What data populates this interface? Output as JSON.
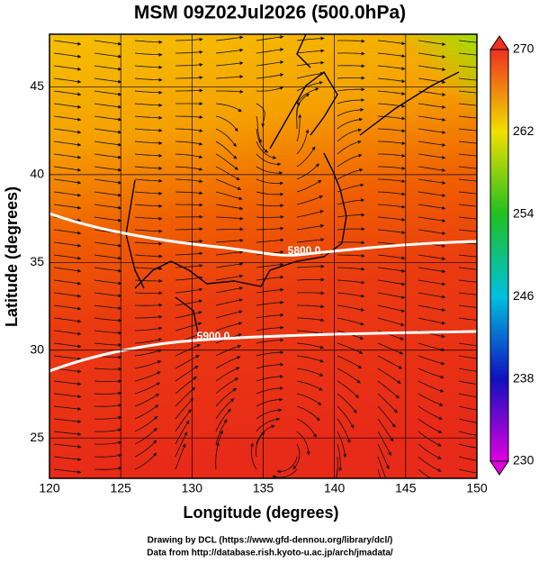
{
  "map": {
    "title": "MSM 09Z02Jul2026 (500.0hPa)",
    "xlabel": "Longitude (degrees)",
    "ylabel": "Latitude  (degrees)",
    "xlim": [
      120,
      150
    ],
    "ylim": [
      22.7,
      48
    ],
    "xticks": [
      120,
      125,
      130,
      135,
      140,
      145,
      150
    ],
    "yticks": [
      25,
      30,
      35,
      40,
      45
    ],
    "colorbar": {
      "lim": [
        230,
        270
      ],
      "ticks": [
        230,
        238,
        246,
        254,
        262,
        270
      ]
    },
    "contours": [
      {
        "value": 5800,
        "label": "5800.0"
      },
      {
        "value": 5900,
        "label": "5900.0"
      }
    ],
    "credits": [
      "Drawing by DCL (https://www.gfd-dennou.org/library/dcl/)",
      "Data from http://database.rish.kyoto-u.ac.jp/arch/jmadata/"
    ]
  }
}
